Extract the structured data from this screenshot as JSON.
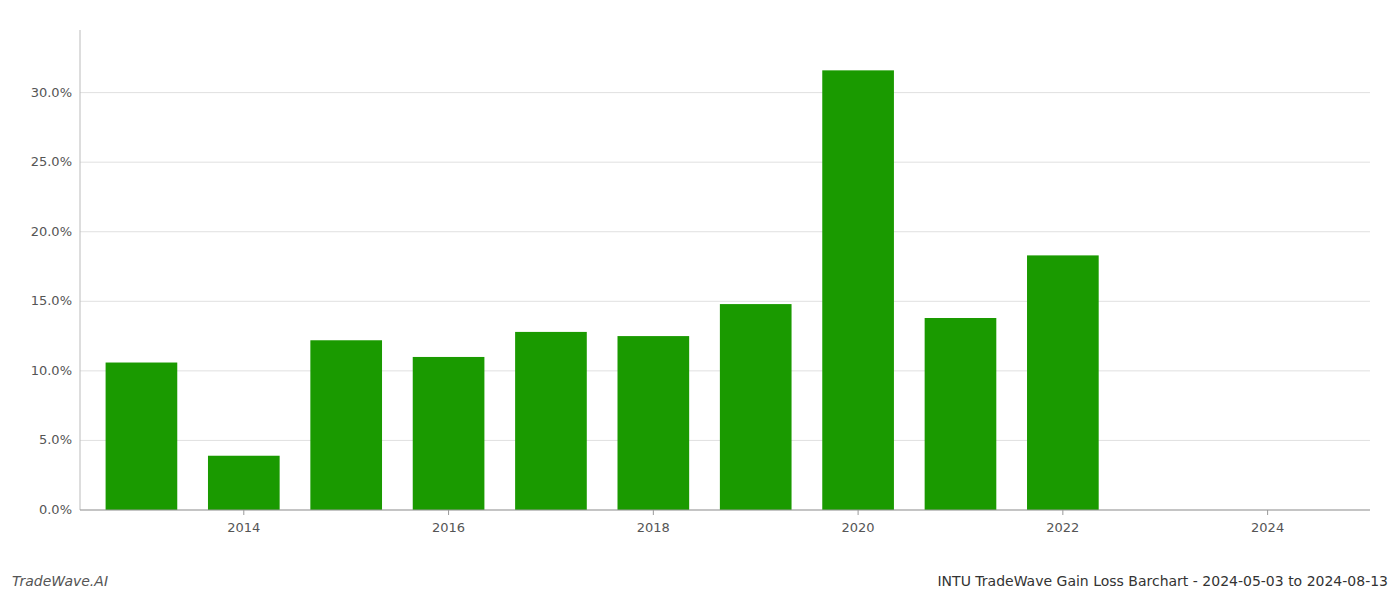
{
  "chart_data": {
    "type": "bar",
    "title": "INTU TradeWave Gain Loss Barchart - 2024-05-03 to 2024-08-13",
    "annotations": [
      "TradeWave.AI"
    ],
    "x": [
      2013,
      2014,
      2015,
      2016,
      2017,
      2018,
      2019,
      2020,
      2021,
      2022
    ],
    "values": [
      0.106,
      0.039,
      0.122,
      0.11,
      0.128,
      0.125,
      0.148,
      0.316,
      0.138,
      0.183
    ],
    "color": "#1a9a00",
    "xlim": [
      2012.4,
      2025.0
    ],
    "xticks": [
      2014,
      2016,
      2018,
      2020,
      2022,
      2024
    ],
    "ylim": [
      0.0,
      0.345
    ],
    "yticks": [
      {
        "value": 0.0,
        "label": "0.0%"
      },
      {
        "value": 0.05,
        "label": "5.0%"
      },
      {
        "value": 0.1,
        "label": "10.0%"
      },
      {
        "value": 0.15,
        "label": "15.0%"
      },
      {
        "value": 0.2,
        "label": "20.0%"
      },
      {
        "value": 0.25,
        "label": "25.0%"
      },
      {
        "value": 0.3,
        "label": "30.0%"
      }
    ],
    "grid": true
  }
}
